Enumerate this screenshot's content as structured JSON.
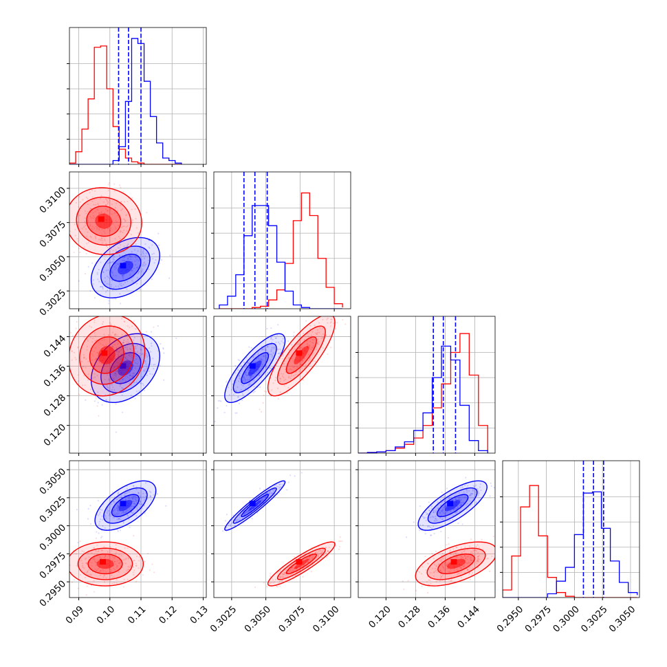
{
  "chart_data": {
    "type": "corner",
    "grid": true,
    "series": [
      {
        "name": "",
        "color": "#ff0000"
      },
      {
        "name": "",
        "color": "#0000ff"
      }
    ],
    "parameters": [
      {
        "range": [
          0.087,
          0.131
        ],
        "ticks": [
          0.09,
          0.1,
          0.11,
          0.12,
          0.13
        ],
        "tick_labels": [
          "0.09",
          "0.10",
          "0.11",
          "0.12",
          "0.13"
        ]
      },
      {
        "range": [
          0.3012,
          0.3112
        ],
        "ticks": [
          0.3025,
          0.305,
          0.3075,
          0.31
        ],
        "tick_labels": [
          "0.3025",
          "0.3050",
          "0.3075",
          "0.3100"
        ]
      },
      {
        "range": [
          0.1125,
          0.1495
        ],
        "ticks": [
          0.12,
          0.128,
          0.136,
          0.144
        ],
        "tick_labels": [
          "0.120",
          "0.128",
          "0.136",
          "0.144"
        ]
      },
      {
        "range": [
          0.2936,
          0.3058
        ],
        "ticks": [
          0.295,
          0.2975,
          0.3,
          0.3025,
          0.305
        ],
        "tick_labels": [
          "0.2950",
          "0.2975",
          "0.3000",
          "0.3025",
          "0.3050"
        ]
      }
    ],
    "histograms": [
      {
        "edges": [
          0.087,
          0.089,
          0.091,
          0.093,
          0.095,
          0.097,
          0.099,
          0.101,
          0.103,
          0.105,
          0.107,
          0.109,
          0.111,
          0.113,
          0.115,
          0.117,
          0.119,
          0.121,
          0.123
        ],
        "red": [
          0.01,
          0.1,
          0.28,
          0.52,
          0.93,
          0.94,
          0.6,
          0.3,
          0.12,
          0.05,
          0.02,
          0.01,
          0,
          0,
          0,
          0,
          0,
          0
        ],
        "blue": [
          0,
          0,
          0,
          0,
          0,
          0,
          0,
          0.03,
          0.14,
          0.5,
          1.0,
          0.96,
          0.66,
          0.38,
          0.17,
          0.05,
          0.03,
          0.01
        ],
        "quantile_lines": [
          0.1028,
          0.106,
          0.11
        ]
      },
      {
        "edges": [
          0.3016,
          0.3022,
          0.3028,
          0.3034,
          0.304,
          0.3046,
          0.3052,
          0.3058,
          0.3064,
          0.307,
          0.3076,
          0.3082,
          0.3088,
          0.3094,
          0.31,
          0.3106
        ],
        "red": [
          0,
          0,
          0,
          0,
          0.01,
          0.02,
          0.07,
          0.15,
          0.36,
          0.7,
          0.92,
          0.74,
          0.4,
          0.17,
          0.04,
          0.01
        ],
        "blue": [
          0.03,
          0.1,
          0.27,
          0.58,
          0.82,
          0.82,
          0.66,
          0.37,
          0.14,
          0.03,
          0.01,
          0,
          0,
          0,
          0,
          0
        ],
        "quantile_lines": [
          0.3034,
          0.3042,
          0.3051
        ]
      },
      {
        "edges": [
          0.1125,
          0.115,
          0.1175,
          0.12,
          0.1225,
          0.125,
          0.1275,
          0.13,
          0.1325,
          0.135,
          0.1375,
          0.14,
          0.1425,
          0.145,
          0.1475
        ],
        "red": [
          0,
          0.005,
          0.01,
          0.02,
          0.04,
          0.07,
          0.12,
          0.22,
          0.36,
          0.55,
          0.8,
          0.95,
          0.62,
          0.22,
          0.02
        ],
        "blue": [
          0,
          0.005,
          0.01,
          0.02,
          0.05,
          0.09,
          0.18,
          0.32,
          0.6,
          0.85,
          0.74,
          0.38,
          0.1,
          0.02,
          0
        ],
        "quantile_lines": [
          0.1328,
          0.1355,
          0.1388
        ]
      },
      {
        "edges": [
          0.2936,
          0.2944,
          0.2952,
          0.296,
          0.2968,
          0.2976,
          0.2984,
          0.2992,
          0.3,
          0.3008,
          0.3016,
          0.3024,
          0.3032,
          0.304,
          0.3048,
          0.3056
        ],
        "red": [
          0.06,
          0.33,
          0.72,
          0.89,
          0.49,
          0.16,
          0.04,
          0.01,
          0,
          0,
          0,
          0,
          0,
          0,
          0,
          0
        ],
        "blue": [
          0,
          0,
          0,
          0,
          0,
          0.03,
          0.13,
          0.24,
          0.5,
          0.83,
          0.84,
          0.55,
          0.29,
          0.12,
          0.04,
          0.02
        ],
        "quantile_lines": [
          0.3008,
          0.3017,
          0.3026
        ]
      }
    ],
    "pairs": [
      {
        "x": 0,
        "y": 1,
        "red": {
          "mean": [
            0.098,
            0.3076
          ],
          "sd": [
            0.005,
            0.001
          ],
          "rho": -0.05
        },
        "blue": {
          "mean": [
            0.105,
            0.3042
          ],
          "sd": [
            0.0045,
            0.0009
          ],
          "rho": 0.4
        }
      },
      {
        "x": 0,
        "y": 2,
        "red": {
          "mean": [
            0.099,
            0.139
          ],
          "sd": [
            0.005,
            0.0045
          ],
          "rho": 0.1
        },
        "blue": {
          "mean": [
            0.105,
            0.1355
          ],
          "sd": [
            0.0045,
            0.0038
          ],
          "rho": 0.35
        }
      },
      {
        "x": 1,
        "y": 2,
        "red": {
          "mean": [
            0.3076,
            0.139
          ],
          "sd": [
            0.001,
            0.0045
          ],
          "rho": 0.8
        },
        "blue": {
          "mean": [
            0.3042,
            0.1355
          ],
          "sd": [
            0.0009,
            0.0038
          ],
          "rho": 0.8
        }
      },
      {
        "x": 0,
        "y": 3,
        "red": {
          "mean": [
            0.0985,
            0.2966
          ],
          "sd": [
            0.005,
            0.0008
          ],
          "rho": 0.0
        },
        "blue": {
          "mean": [
            0.105,
            0.3018
          ],
          "sd": [
            0.004,
            0.0009
          ],
          "rho": 0.6
        }
      },
      {
        "x": 1,
        "y": 3,
        "red": {
          "mean": [
            0.3076,
            0.2966
          ],
          "sd": [
            0.001,
            0.0008
          ],
          "rho": 0.9
        },
        "blue": {
          "mean": [
            0.3042,
            0.3018
          ],
          "sd": [
            0.0009,
            0.0009
          ],
          "rho": 0.95
        }
      },
      {
        "x": 2,
        "y": 3,
        "red": {
          "mean": [
            0.139,
            0.2966
          ],
          "sd": [
            0.0045,
            0.0008
          ],
          "rho": 0.55
        },
        "blue": {
          "mean": [
            0.138,
            0.3018
          ],
          "sd": [
            0.0038,
            0.0009
          ],
          "rho": 0.75
        }
      }
    ]
  }
}
